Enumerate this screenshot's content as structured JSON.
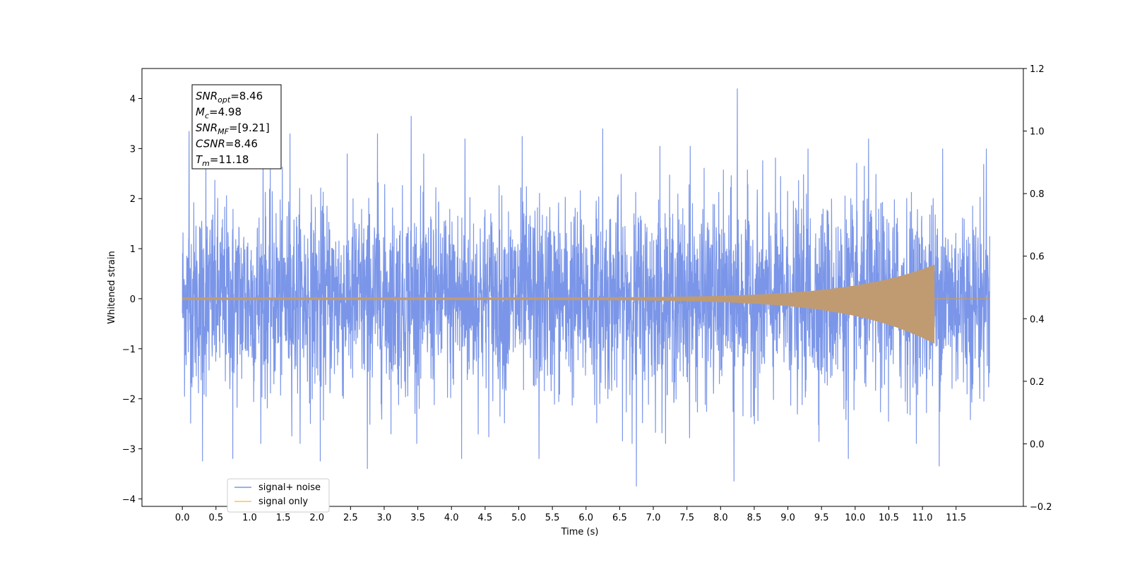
{
  "chart_data": {
    "type": "line",
    "xlabel": "Time (s)",
    "ylabel": "Whitened strain",
    "xlim": [
      -0.6,
      12.5
    ],
    "ylim": [
      -4.15,
      4.6
    ],
    "y2lim": [
      -0.2,
      1.2
    ],
    "xticks": [
      "0.0",
      "0.5",
      "1.0",
      "1.5",
      "2.0",
      "2.5",
      "3.0",
      "3.5",
      "4.0",
      "4.5",
      "5.0",
      "5.5",
      "6.0",
      "6.5",
      "7.0",
      "7.5",
      "8.0",
      "8.5",
      "9.0",
      "9.5",
      "10.0",
      "10.5",
      "11.0",
      "11.5"
    ],
    "yticks": [
      "4",
      "3",
      "2",
      "1",
      "0",
      "−1",
      "−2",
      "−3",
      "−4"
    ],
    "y2ticks": [
      "1.2",
      "1.0",
      "0.8",
      "0.6",
      "0.4",
      "0.2",
      "0.0",
      "−0.2"
    ],
    "series": [
      {
        "name": "signal+ noise",
        "color": "#7b96e8",
        "description_range": [
          0.0,
          12.0
        ],
        "noise_std": 0.95,
        "peaks": [
          {
            "x": 0.1,
            "y": 3.35
          },
          {
            "x": 0.35,
            "y": 3.35
          },
          {
            "x": 1.2,
            "y": 3.2
          },
          {
            "x": 1.6,
            "y": 3.3
          },
          {
            "x": 2.05,
            "y": 4.15
          },
          {
            "x": 2.9,
            "y": 3.3
          },
          {
            "x": 3.4,
            "y": 3.65
          },
          {
            "x": 4.2,
            "y": 3.2
          },
          {
            "x": 5.05,
            "y": 3.25
          },
          {
            "x": 6.25,
            "y": 3.4
          },
          {
            "x": 7.1,
            "y": 3.05
          },
          {
            "x": 7.55,
            "y": 3.05
          },
          {
            "x": 8.25,
            "y": 4.2
          },
          {
            "x": 9.3,
            "y": 3.0
          },
          {
            "x": 10.2,
            "y": 3.2
          },
          {
            "x": 11.3,
            "y": 3.0
          },
          {
            "x": 11.95,
            "y": 3.0
          },
          {
            "x": 0.3,
            "y": -3.25
          },
          {
            "x": 0.75,
            "y": -3.2
          },
          {
            "x": 2.05,
            "y": -3.25
          },
          {
            "x": 2.75,
            "y": -3.4
          },
          {
            "x": 4.15,
            "y": -3.2
          },
          {
            "x": 5.3,
            "y": -3.2
          },
          {
            "x": 6.75,
            "y": -3.75
          },
          {
            "x": 8.2,
            "y": -3.65
          },
          {
            "x": 9.9,
            "y": -3.2
          },
          {
            "x": 11.25,
            "y": -3.35
          }
        ]
      },
      {
        "name": "signal only",
        "color": "#ffbf5a",
        "chirp_end": 11.18,
        "chirp_amp_max": 0.68,
        "chirp_amp_min": -0.9
      }
    ],
    "legend": {
      "placement": "lower-left"
    },
    "grid": false
  },
  "annotation": {
    "lines": [
      {
        "main": "SNR",
        "sub": "opt",
        "rest": "=8.46"
      },
      {
        "main": "M",
        "sub": "c",
        "rest": "=4.98"
      },
      {
        "main": "SNR",
        "sub": "MF",
        "rest": "=[9.21]"
      },
      {
        "main": "CSNR",
        "sub": "",
        "rest": "=8.46"
      },
      {
        "main": "T",
        "sub": "m",
        "rest": "=11.18"
      }
    ]
  }
}
